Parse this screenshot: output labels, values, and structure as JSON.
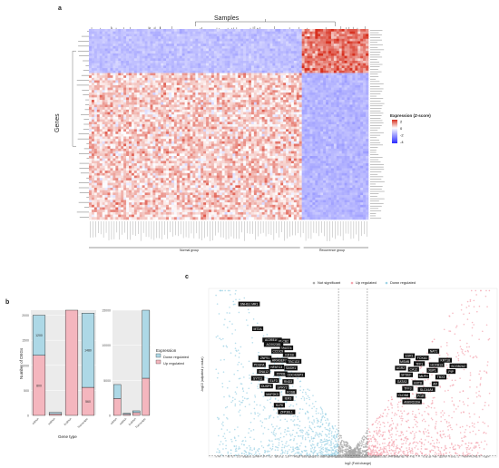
{
  "figure": {
    "panels": {
      "a": "a",
      "b": "b",
      "c": "c"
    }
  },
  "chart_data": [
    {
      "panel": "a",
      "type": "heatmap",
      "title": "Samples",
      "ylabel": "Genes",
      "legend_title": "Expression (Z-score)",
      "legend_ticks": [
        2,
        0,
        -2,
        -4
      ],
      "legend_placement": "right",
      "color_scale": {
        "high": "#d7301f",
        "mid": "#ffffff",
        "low": "#2c2cff"
      },
      "groups": [
        {
          "label": "Normal group",
          "samples": 80
        },
        {
          "label": "Recurrence group",
          "samples": 25
        }
      ],
      "gene_clusters": [
        {
          "rows": 18,
          "normal_level": -1.2,
          "recurrence_level": 1.6
        },
        {
          "rows": 60,
          "normal_level": 0.6,
          "recurrence_level": -1.4
        }
      ]
    },
    {
      "panel": "b-left",
      "type": "bar",
      "xlabel": "Gene type",
      "ylabel": "Number of DEGs",
      "categories": [
        "mRNA",
        "miRNA",
        "lncRNA",
        "Transcripts"
      ],
      "ylim": [
        0,
        2100
      ],
      "yticks": [
        0,
        500,
        1000,
        1500,
        2000
      ],
      "series": [
        {
          "name": "Up regulated",
          "values": [
            1200,
            30,
            2100,
            560
          ]
        },
        {
          "name": "Down regulated",
          "values": [
            800,
            30,
            0,
            1480
          ]
        }
      ],
      "bar_labels": [
        "1200",
        "800",
        "560",
        "1480"
      ],
      "colors": {
        "Up regulated": "#f4b6be",
        "Down regulated": "#add8e6"
      }
    },
    {
      "panel": "b-right",
      "type": "bar",
      "xlabel": "",
      "ylabel": "",
      "categories": [
        "mRNA",
        "miRNA",
        "lncRNA",
        "Transcripts"
      ],
      "ylim": [
        0,
        15000
      ],
      "yticks": [
        0,
        5000,
        10000,
        15000
      ],
      "legend_title": "Expression",
      "legend": [
        "Down regulated",
        "Up regulated"
      ],
      "legend_placement": "right",
      "series": [
        {
          "name": "Up regulated",
          "values": [
            2400,
            150,
            400,
            5300
          ]
        },
        {
          "name": "Down regulated",
          "values": [
            2000,
            150,
            250,
            9700
          ]
        }
      ],
      "colors": {
        "Up regulated": "#f4b6be",
        "Down regulated": "#add8e6"
      }
    },
    {
      "panel": "c",
      "type": "scatter",
      "xlabel": "log2 (Fold change)",
      "ylabel": "-log10 (adjusted p value)",
      "legend": [
        "Not significant",
        "Up regulated",
        "Down regulated"
      ],
      "legend_placement": "top",
      "xlim": [
        -10,
        10
      ],
      "ylim": [
        0,
        150
      ],
      "threshold_x": [
        -1,
        1
      ],
      "threshold_y": 1.3,
      "colors": {
        "Not significant": "#aaaaaa",
        "Up regulated": "#f4a6b0",
        "Down regulated": "#9fd3e6"
      },
      "labeled_genes": {
        "left": [
          {
            "x": -7.2,
            "y": 136,
            "gene": "SNHG1 MR1"
          },
          {
            "x": -6.6,
            "y": 114,
            "gene": "MT2A"
          },
          {
            "x": -5.6,
            "y": 104,
            "gene": "AC093168"
          },
          {
            "x": -4.8,
            "y": 103,
            "gene": "PLCB2"
          },
          {
            "x": -5.5,
            "y": 100,
            "gene": "AC002381"
          },
          {
            "x": -4.6,
            "y": 97,
            "gene": "MAST4"
          },
          {
            "x": -5.2,
            "y": 94,
            "gene": "CCDC9"
          },
          {
            "x": -4.4,
            "y": 91,
            "gene": "KIF1B"
          },
          {
            "x": -6.1,
            "y": 88,
            "gene": "ZNF91"
          },
          {
            "x": -5.1,
            "y": 86,
            "gene": "ARHGEF7"
          },
          {
            "x": -4.1,
            "y": 85,
            "gene": "TBC1D2"
          },
          {
            "x": -6.5,
            "y": 82,
            "gene": "PDGFA"
          },
          {
            "x": -5.3,
            "y": 80,
            "gene": "NFATC3"
          },
          {
            "x": -4.3,
            "y": 79,
            "gene": "SASH1"
          },
          {
            "x": -6.2,
            "y": 76,
            "gene": "GNA12"
          },
          {
            "x": -5.0,
            "y": 74,
            "gene": "ITPKB"
          },
          {
            "x": -4.0,
            "y": 73,
            "gene": "CDC42EP3"
          },
          {
            "x": -6.6,
            "y": 70,
            "gene": "SYT11"
          },
          {
            "x": -5.5,
            "y": 68,
            "gene": "ELF3"
          },
          {
            "x": -4.5,
            "y": 67,
            "gene": "RND3"
          },
          {
            "x": -6.0,
            "y": 63,
            "gene": "DUSP3"
          },
          {
            "x": -4.9,
            "y": 62,
            "gene": "SPRY2"
          },
          {
            "x": -4.3,
            "y": 58,
            "gene": "FOSB"
          },
          {
            "x": -5.6,
            "y": 56,
            "gene": "MAP2K3"
          },
          {
            "x": -4.5,
            "y": 52,
            "gene": "IER3"
          },
          {
            "x": -5.1,
            "y": 46,
            "gene": "KLF6"
          },
          {
            "x": -4.6,
            "y": 40,
            "gene": "ZFP36L1"
          }
        ],
        "right": [
          {
            "x": 5.6,
            "y": 94,
            "gene": "NAT1"
          },
          {
            "x": 3.9,
            "y": 90,
            "gene": "ESR1"
          },
          {
            "x": 4.8,
            "y": 88,
            "gene": "FOXA1"
          },
          {
            "x": 6.4,
            "y": 86,
            "gene": "KRT18"
          },
          {
            "x": 3.6,
            "y": 85,
            "gene": "MSMB"
          },
          {
            "x": 4.6,
            "y": 83,
            "gene": "TFF1"
          },
          {
            "x": 5.8,
            "y": 82,
            "gene": "HOXB13"
          },
          {
            "x": 7.3,
            "y": 81,
            "gene": "SCGB2A2"
          },
          {
            "x": 3.3,
            "y": 79,
            "gene": "AGR2"
          },
          {
            "x": 4.2,
            "y": 78,
            "gene": "CA12"
          },
          {
            "x": 5.5,
            "y": 77,
            "gene": "XBP1"
          },
          {
            "x": 6.8,
            "y": 76,
            "gene": "PIP"
          },
          {
            "x": 3.7,
            "y": 73,
            "gene": "SPDEF"
          },
          {
            "x": 4.9,
            "y": 72,
            "gene": "MLPH"
          },
          {
            "x": 6.1,
            "y": 71,
            "gene": "TBX3"
          },
          {
            "x": 3.4,
            "y": 67,
            "gene": "GATA3"
          },
          {
            "x": 4.5,
            "y": 66,
            "gene": "KRT8"
          },
          {
            "x": 5.7,
            "y": 65,
            "gene": "AR"
          },
          {
            "x": 3.8,
            "y": 61,
            "gene": "TFF3"
          },
          {
            "x": 5.1,
            "y": 60,
            "gene": "SLC44A4"
          },
          {
            "x": 3.5,
            "y": 55,
            "gene": "CLDN8"
          },
          {
            "x": 4.7,
            "y": 54,
            "gene": "PGR"
          },
          {
            "x": 4.1,
            "y": 49,
            "gene": "ANKRD30A"
          }
        ]
      }
    }
  ]
}
